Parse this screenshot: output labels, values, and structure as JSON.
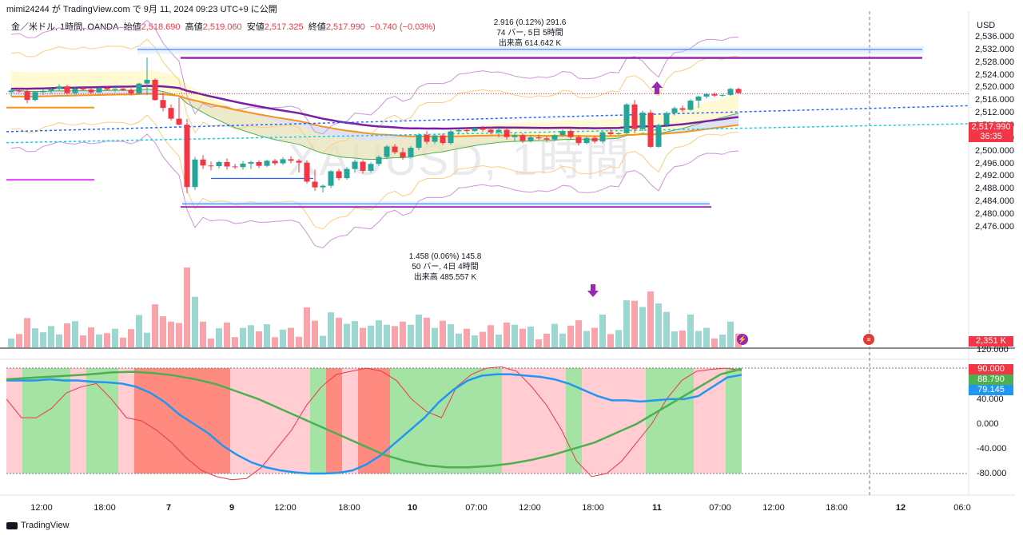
{
  "header": {
    "credit": "mimi24244 が TradingView.com で 9月 11, 2024 09:23 UTC+9 に公開",
    "symbol": "金／米ドル, 1時間, OANDA",
    "open_label": "始値",
    "open": "2,518.690",
    "high_label": "高値",
    "high": "2,519.060",
    "low_label": "安値",
    "low": "2,517.325",
    "close_label": "終値",
    "close": "2,517.990",
    "change": "−0.740 (−0.03%)"
  },
  "watermark": "XAUUSD, 1時間",
  "currency": "USD",
  "measure_top": {
    "line1": "2.916 (0.12%) 291.6",
    "line2": "74 バー, 5日 5時間",
    "line3": "出来高 614.642 K"
  },
  "measure_bottom": {
    "line1": "1.458 (0.06%) 145.8",
    "line2": "50 バー, 4日 4時間",
    "line3": "出来高 485.557 K"
  },
  "badges": {
    "price": "2,517.990",
    "countdown": "36:35",
    "volume": "2,351 K",
    "osc_90": "90.000",
    "osc_green": "88.790",
    "osc_blue": "79.145"
  },
  "footer": {
    "brand": "TradingView"
  },
  "colors": {
    "up": "#26a69a",
    "down": "#f23645",
    "ema_orange": "#f7931a",
    "ema_purple": "#7b1fa2",
    "cloud": "#c5cae9",
    "osc_green": "#4caf50",
    "osc_blue": "#2196f3",
    "osc_red": "#f23645"
  },
  "chart_data": [
    {
      "type": "candlestick",
      "title": "",
      "ylabel": "",
      "y_axis_ticks": [
        "2,536.000",
        "2,532.000",
        "2,528.000",
        "2,524.000",
        "2,520.000",
        "2,516.000",
        "2,512.000",
        "2,508.000",
        "2,504.000",
        "2,500.000",
        "2,496.000",
        "2,492.000",
        "2,488.000",
        "2,484.000",
        "2,480.000",
        "2,476.000"
      ],
      "ylim": [
        2474.0,
        2538.0
      ],
      "x_axis_ticks": [
        "12:00",
        "18:00",
        "7",
        "9",
        "12:00",
        "18:00",
        "10",
        "07:00",
        "12:00",
        "18:00",
        "11",
        "07:00",
        "12:00",
        "18:00",
        "12",
        "06:0"
      ],
      "bold_ticks": [
        "7",
        "9",
        "10",
        "11",
        "12"
      ],
      "candles": [
        [
          2518.5,
          2519.6,
          2517.2,
          2519.0
        ],
        [
          2519.0,
          2519.8,
          2518.3,
          2518.7
        ],
        [
          2518.7,
          2519.3,
          2515.0,
          2516.0
        ],
        [
          2516.0,
          2518.8,
          2515.6,
          2518.5
        ],
        [
          2518.5,
          2519.5,
          2517.6,
          2518.9
        ],
        [
          2518.9,
          2519.9,
          2518.0,
          2519.5
        ],
        [
          2519.5,
          2521.0,
          2519.0,
          2520.3
        ],
        [
          2520.3,
          2520.8,
          2517.7,
          2518.2
        ],
        [
          2518.2,
          2520.0,
          2517.6,
          2519.6
        ],
        [
          2519.6,
          2520.3,
          2518.9,
          2519.3
        ],
        [
          2519.3,
          2519.8,
          2517.9,
          2518.4
        ],
        [
          2518.4,
          2520.1,
          2518.2,
          2519.8
        ],
        [
          2519.8,
          2520.4,
          2519.0,
          2519.3
        ],
        [
          2519.3,
          2519.8,
          2518.5,
          2519.6
        ],
        [
          2519.6,
          2520.0,
          2518.8,
          2519.2
        ],
        [
          2519.2,
          2519.7,
          2517.5,
          2518.1
        ],
        [
          2518.1,
          2521.5,
          2517.9,
          2521.2
        ],
        [
          2521.2,
          2529.4,
          2517.5,
          2522.4
        ],
        [
          2522.4,
          2522.8,
          2515.8,
          2516.0
        ],
        [
          2516.0,
          2518.4,
          2512.4,
          2513.5
        ],
        [
          2513.5,
          2514.6,
          2509.5,
          2510.1
        ],
        [
          2510.1,
          2516.8,
          2508.0,
          2508.2
        ],
        [
          2508.2,
          2510.0,
          2486.6,
          2488.5
        ],
        [
          2488.5,
          2498.0,
          2487.6,
          2497.2
        ],
        [
          2497.2,
          2498.6,
          2494.2,
          2495.3
        ],
        [
          2495.3,
          2496.5,
          2493.8,
          2495.1
        ],
        [
          2495.1,
          2496.8,
          2494.4,
          2496.4
        ],
        [
          2496.4,
          2497.5,
          2494.0,
          2495.0
        ],
        [
          2495.0,
          2495.8,
          2494.2,
          2494.8
        ],
        [
          2494.8,
          2496.7,
          2494.0,
          2495.9
        ],
        [
          2495.9,
          2496.8,
          2494.2,
          2496.4
        ],
        [
          2496.4,
          2496.9,
          2494.5,
          2495.2
        ],
        [
          2495.2,
          2497.1,
          2494.8,
          2496.8
        ],
        [
          2496.8,
          2497.4,
          2495.3,
          2496.0
        ],
        [
          2496.0,
          2497.9,
          2495.5,
          2497.3
        ],
        [
          2497.3,
          2498.2,
          2496.0,
          2496.8
        ],
        [
          2496.8,
          2497.4,
          2493.1,
          2496.2
        ],
        [
          2496.2,
          2496.9,
          2489.6,
          2490.2
        ],
        [
          2490.2,
          2494.0,
          2487.3,
          2488.4
        ],
        [
          2488.4,
          2489.3,
          2486.8,
          2488.9
        ],
        [
          2488.9,
          2493.8,
          2488.2,
          2493.5
        ],
        [
          2493.5,
          2494.2,
          2490.6,
          2491.3
        ],
        [
          2491.3,
          2494.8,
          2490.8,
          2494.2
        ],
        [
          2494.2,
          2497.1,
          2493.0,
          2496.5
        ],
        [
          2496.5,
          2497.0,
          2492.8,
          2493.6
        ],
        [
          2493.6,
          2496.3,
          2493.0,
          2495.8
        ],
        [
          2495.8,
          2498.5,
          2495.2,
          2498.0
        ],
        [
          2498.0,
          2501.8,
          2497.3,
          2501.3
        ],
        [
          2501.3,
          2502.1,
          2498.9,
          2499.5
        ],
        [
          2499.5,
          2500.9,
          2497.1,
          2497.9
        ],
        [
          2497.9,
          2501.4,
          2497.5,
          2500.9
        ],
        [
          2500.9,
          2505.5,
          2500.1,
          2505.0
        ],
        [
          2505.0,
          2506.2,
          2502.0,
          2502.8
        ],
        [
          2502.8,
          2505.1,
          2502.1,
          2504.8
        ],
        [
          2504.8,
          2505.4,
          2501.8,
          2502.4
        ],
        [
          2502.4,
          2506.5,
          2501.9,
          2506.1
        ],
        [
          2506.1,
          2506.9,
          2505.2,
          2506.5
        ],
        [
          2506.5,
          2507.2,
          2505.6,
          2506.2
        ],
        [
          2506.2,
          2507.6,
          2505.9,
          2507.1
        ],
        [
          2507.1,
          2507.8,
          2506.0,
          2506.6
        ],
        [
          2506.6,
          2507.5,
          2505.1,
          2505.8
        ],
        [
          2505.8,
          2507.0,
          2504.2,
          2506.6
        ],
        [
          2506.6,
          2507.1,
          2503.5,
          2504.3
        ],
        [
          2504.3,
          2505.6,
          2503.1,
          2504.9
        ],
        [
          2504.9,
          2505.5,
          2502.4,
          2503.1
        ],
        [
          2503.1,
          2504.8,
          2502.6,
          2504.2
        ],
        [
          2504.2,
          2505.1,
          2503.4,
          2503.9
        ],
        [
          2503.9,
          2504.6,
          2502.8,
          2503.5
        ],
        [
          2503.5,
          2505.3,
          2503.0,
          2504.9
        ],
        [
          2504.9,
          2506.7,
          2504.4,
          2506.2
        ],
        [
          2506.2,
          2506.8,
          2503.7,
          2504.3
        ],
        [
          2504.3,
          2504.9,
          2501.6,
          2502.4
        ],
        [
          2502.4,
          2504.5,
          2501.9,
          2504.0
        ],
        [
          2504.0,
          2504.5,
          2502.3,
          2502.9
        ],
        [
          2502.9,
          2506.1,
          2502.4,
          2505.8
        ],
        [
          2505.8,
          2506.7,
          2504.8,
          2505.2
        ],
        [
          2505.2,
          2505.8,
          2505.0,
          2505.5
        ],
        [
          2505.5,
          2515.0,
          2505.1,
          2514.6
        ],
        [
          2514.6,
          2516.0,
          2505.5,
          2506.8
        ],
        [
          2506.8,
          2512.6,
          2506.2,
          2512.0
        ],
        [
          2512.0,
          2512.9,
          2500.8,
          2501.2
        ],
        [
          2501.2,
          2508.5,
          2500.9,
          2508.1
        ],
        [
          2508.1,
          2512.4,
          2507.4,
          2511.9
        ],
        [
          2511.9,
          2513.9,
          2511.1,
          2513.4
        ],
        [
          2513.4,
          2514.2,
          2512.2,
          2512.9
        ],
        [
          2512.9,
          2516.2,
          2512.6,
          2515.8
        ],
        [
          2515.8,
          2517.4,
          2513.5,
          2517.1
        ],
        [
          2517.1,
          2518.3,
          2516.5,
          2517.9
        ],
        [
          2517.9,
          2518.4,
          2516.9,
          2517.4
        ],
        [
          2517.4,
          2517.9,
          2517.0,
          2517.6
        ],
        [
          2517.6,
          2519.9,
          2517.3,
          2519.5
        ],
        [
          2519.5,
          2519.9,
          2518.0,
          2518.2
        ]
      ]
    },
    {
      "type": "area",
      "name": "",
      "y_axis_ticks": [
        "120.000",
        "40.000",
        "0.000",
        "-40.000",
        "-80.000"
      ],
      "ylim": [
        -100,
        120
      ],
      "levels": [
        90,
        -80
      ],
      "background_blocks": [
        [
          0,
          2,
          "#ffcdd2"
        ],
        [
          2,
          8,
          "#a5e3a5"
        ],
        [
          8,
          10,
          "#ffcdd2"
        ],
        [
          10,
          14,
          "#a5e3a5"
        ],
        [
          14,
          16,
          "#ffcdd2"
        ],
        [
          16,
          18,
          "#ff8a80"
        ],
        [
          18,
          28,
          "#ff8a80"
        ],
        [
          28,
          38,
          "#ffcdd2"
        ],
        [
          38,
          40,
          "#a5e3a5"
        ],
        [
          40,
          42,
          "#ff8a80"
        ],
        [
          42,
          44,
          "#ffcdd2"
        ],
        [
          44,
          48,
          "#ff8a80"
        ],
        [
          48,
          62,
          "#a5e3a5"
        ],
        [
          62,
          64,
          "#ffcdd2"
        ],
        [
          64,
          70,
          "#ffcdd2"
        ],
        [
          70,
          72,
          "#a5e3a5"
        ],
        [
          72,
          80,
          "#ffcdd2"
        ],
        [
          80,
          86,
          "#a5e3a5"
        ],
        [
          86,
          90,
          "#ffcdd2"
        ],
        [
          90,
          92,
          "#a5e3a5"
        ]
      ],
      "series_red": [
        40,
        10,
        10,
        25,
        50,
        60,
        65,
        40,
        10,
        5,
        -10,
        -30,
        -55,
        -75,
        -85,
        -90,
        -88,
        -70,
        -40,
        -10,
        30,
        60,
        80,
        85,
        90,
        85,
        70,
        40,
        20,
        10,
        60,
        80,
        90,
        92,
        85,
        60,
        30,
        -10,
        -60,
        -85,
        -80,
        -60,
        -30,
        0,
        40,
        70,
        85,
        88,
        90,
        86
      ],
      "series_blue": [
        70,
        70,
        70,
        72,
        70,
        70,
        68,
        67,
        65,
        60,
        50,
        35,
        15,
        0,
        -15,
        -35,
        -50,
        -62,
        -70,
        -75,
        -78,
        -80,
        -80,
        -79,
        -75,
        -65,
        -50,
        -30,
        -10,
        10,
        35,
        55,
        70,
        78,
        80,
        80,
        78,
        76,
        72,
        65,
        55,
        45,
        38,
        38,
        36,
        38,
        40,
        40,
        45,
        60,
        75,
        79.145
      ],
      "series_green": [
        72,
        74,
        76,
        78,
        80,
        83,
        84,
        82,
        78,
        72,
        64,
        52,
        40,
        25,
        10,
        -5,
        -20,
        -35,
        -50,
        -60,
        -67,
        -70,
        -70,
        -68,
        -64,
        -58,
        -50,
        -40,
        -30,
        -15,
        0,
        20,
        40,
        60,
        80,
        88.79
      ]
    }
  ]
}
